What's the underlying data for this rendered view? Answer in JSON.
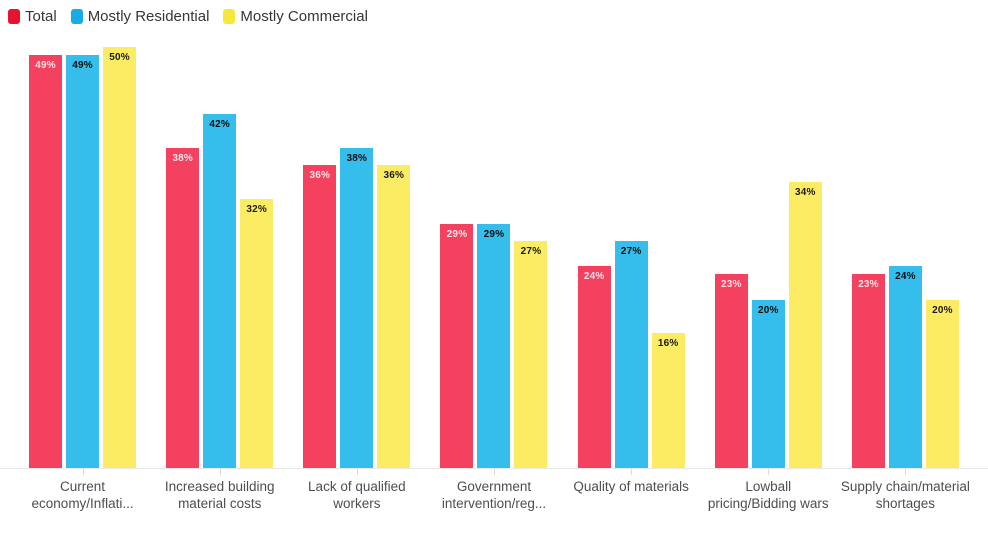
{
  "chart_data": {
    "type": "bar",
    "title": "",
    "legend_position": "top-left",
    "grid": false,
    "value_suffix": "%",
    "ylim": [
      0,
      50
    ],
    "categories": [
      "Current economy/Inflati...",
      "Increased building material costs",
      "Lack of qualified workers",
      "Government intervention/reg...",
      "Quality of materials",
      "Lowball pricing/Bidding wars",
      "Supply chain/material shortages"
    ],
    "series": [
      {
        "name": "Total",
        "color": "#F3415F",
        "legend_color": "#E81130",
        "value_label_color": "rgba(255,255,255,0.85)",
        "values": [
          49,
          38,
          36,
          29,
          24,
          23,
          23
        ]
      },
      {
        "name": "Mostly Residential",
        "color": "#35BEEC",
        "legend_color": "#18ACE6",
        "value_label_color": "#0d0d0d",
        "values": [
          49,
          42,
          38,
          29,
          27,
          20,
          24
        ]
      },
      {
        "name": "Mostly Commercial",
        "color": "#FBEC63",
        "legend_color": "#F8E73B",
        "value_label_color": "#1a1a1a",
        "values": [
          50,
          32,
          36,
          27,
          16,
          34,
          20
        ]
      }
    ],
    "axis": {
      "baseline_color": "#e7e7e7",
      "tick_color": "#dcdcdc",
      "category_label_color": "#4e4e4e"
    }
  }
}
